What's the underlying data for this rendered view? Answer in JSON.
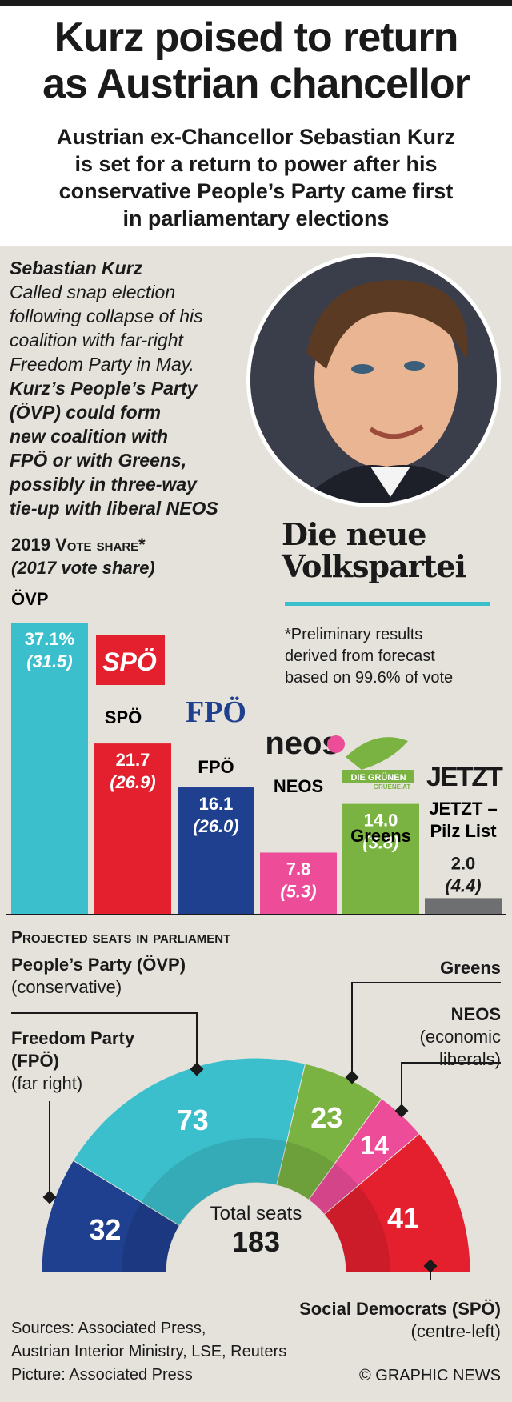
{
  "title_line1": "Kurz poised to return",
  "title_line2": "as Austrian chancellor",
  "subtitle_lines": [
    "Austrian ex-Chancellor Sebastian Kurz",
    "is set for a return to power after his",
    "conservative People’s Party came first",
    "in parliamentary elections"
  ],
  "bio": {
    "name": "Sebastian Kurz",
    "lines": [
      "Called snap election",
      "following collapse of his",
      "coalition with far-right",
      "Freedom Party in May."
    ],
    "bold_lines": [
      "Kurz’s People’s Party",
      "(ÖVP) could form",
      "new coalition with",
      "FPÖ or with Greens,",
      "possibly in three-way",
      "tie-up with liberal NEOS"
    ]
  },
  "logo_text_line1": "Die neue",
  "logo_text_line2": "Volkspartei",
  "vote_share_heading": "2019 Vote share*",
  "vote_share_subheading": "(2017 vote share)",
  "note_lines": [
    "*Preliminary results",
    "derived from forecast",
    "based on 99.6% of vote"
  ],
  "chart_data": [
    {
      "type": "bar",
      "title": "2019 Vote share*",
      "categories": [
        "ÖVP",
        "SPÖ",
        "FPÖ",
        "NEOS",
        "Greens",
        "JETZT–Pilz List"
      ],
      "series": [
        {
          "name": "2019",
          "values": [
            37.1,
            21.7,
            16.1,
            7.8,
            14.0,
            2.0
          ]
        },
        {
          "name": "2017",
          "values": [
            31.5,
            26.9,
            26.0,
            5.3,
            3.8,
            4.4
          ]
        }
      ],
      "value_labels_2019": [
        "37.1%",
        "21.7",
        "16.1",
        "7.8",
        "14.0",
        "2.0"
      ],
      "value_labels_2017": [
        "(31.5)",
        "(26.9)",
        "(26.0)",
        "(5.3)",
        "(3.8)",
        "(4.4)"
      ],
      "category_labels": [
        "ÖVP",
        "SPÖ",
        "FPÖ",
        "NEOS",
        "Greens",
        "JETZT –",
        "Pilz List"
      ],
      "colors": [
        "#3bbfcc",
        "#e5202e",
        "#1f3f8f",
        "#ec4c98",
        "#7ab342",
        "#6d6f71"
      ],
      "ylim": [
        0,
        37.1
      ]
    },
    {
      "type": "pie",
      "title": "Projected seats in parliament",
      "categories": [
        "FPÖ",
        "ÖVP",
        "Greens",
        "NEOS",
        "SPÖ"
      ],
      "values": [
        32,
        73,
        23,
        14,
        41
      ],
      "colors": [
        "#1f3f8f",
        "#3bbfcc",
        "#7ab342",
        "#ec4c98",
        "#e5202e"
      ],
      "total_label": "Total seats",
      "total": "183"
    }
  ],
  "logos": {
    "spo": "SPÖ",
    "fpo": "FPÖ",
    "neos": "neos",
    "gruene": "DIE GRÜNEN",
    "gruene_url": "GRUENE.AT",
    "jetzt": "JETZT"
  },
  "seats_heading": "Projected seats in parliament",
  "seat_labels": {
    "ovp_name": "People’s Party (ÖVP)",
    "ovp_desc": "(conservative)",
    "fpo_name1": "Freedom Party",
    "fpo_name2": "(FPÖ)",
    "fpo_desc": "(far right)",
    "greens_name": "Greens",
    "neos_name": "NEOS",
    "neos_desc1": "(economic",
    "neos_desc2": "liberals)",
    "spo_name": "Social Democrats (SPÖ)",
    "spo_desc": "(centre-left)"
  },
  "sources_lines": [
    "Sources: Associated Press,",
    "Austrian Interior Ministry, LSE, Reuters",
    "Picture: Associated Press"
  ],
  "copyright": "© GRAPHIC NEWS"
}
